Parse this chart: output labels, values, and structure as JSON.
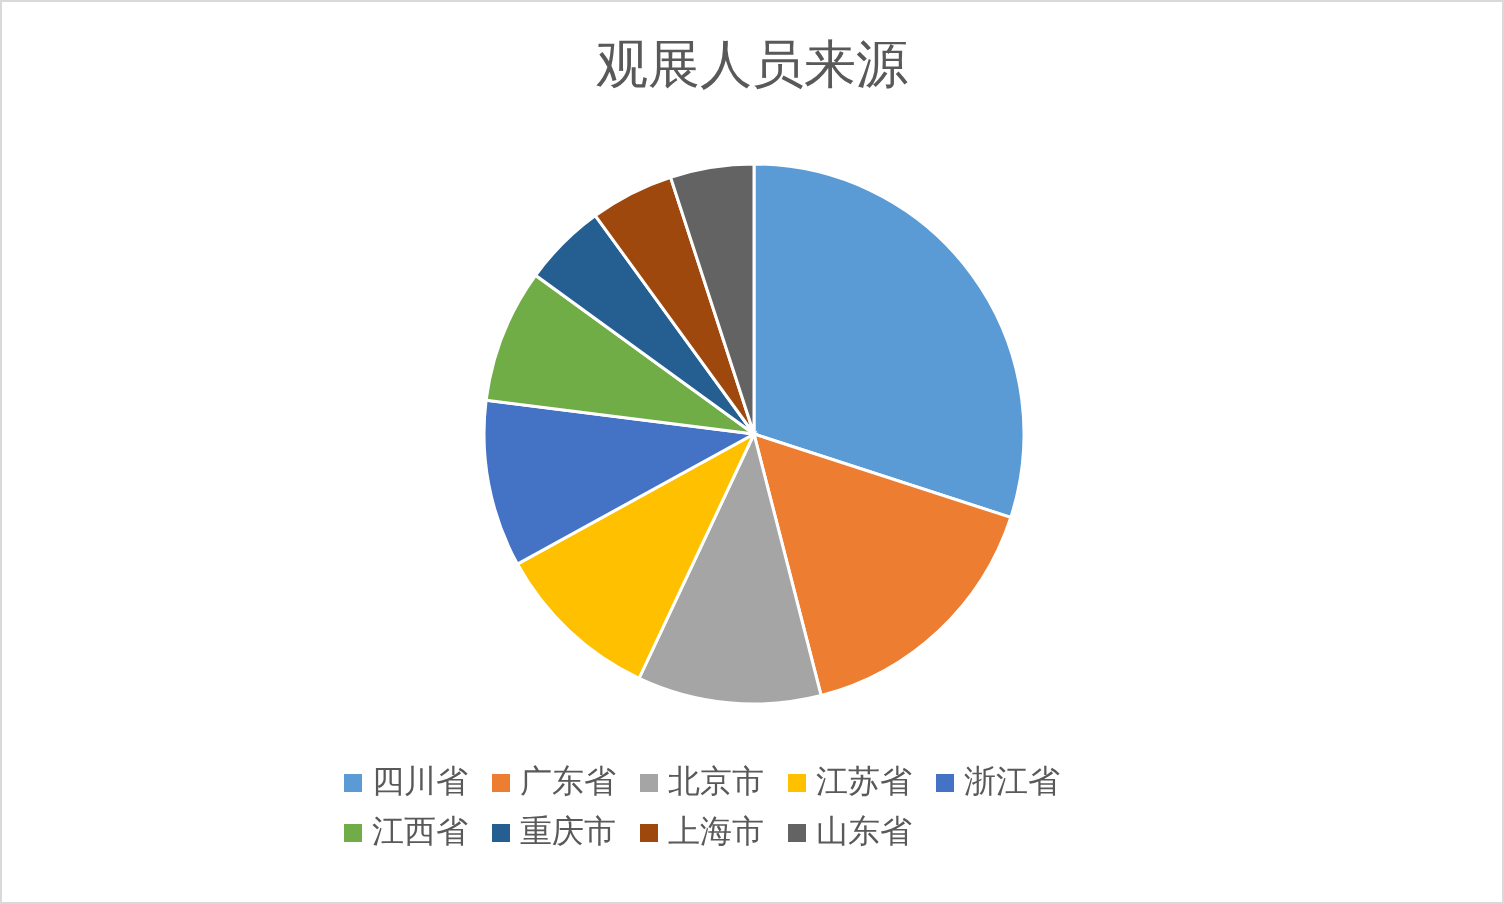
{
  "chart_data": {
    "type": "pie",
    "title": "观展人员来源",
    "categories": [
      "四川省",
      "广东省",
      "北京市",
      "江苏省",
      "浙江省",
      "江西省",
      "重庆市",
      "上海市",
      "山东省"
    ],
    "values": [
      30,
      16,
      11,
      10,
      10,
      8,
      5,
      5,
      5
    ],
    "colors": [
      "#5b9bd5",
      "#ed7d31",
      "#a5a5a5",
      "#ffc000",
      "#4472c4",
      "#70ad47",
      "#255e91",
      "#9e480e",
      "#636363"
    ],
    "legend": "bottom"
  }
}
